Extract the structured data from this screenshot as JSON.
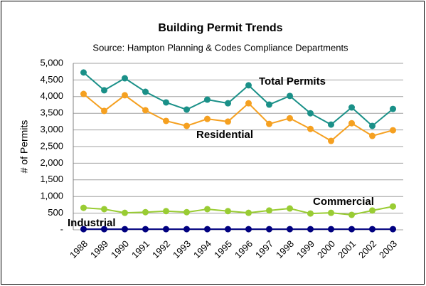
{
  "chart_data": {
    "type": "line",
    "title": "Building Permit Trends",
    "subtitle": "Source: Hampton Planning & Codes Compliance Departments",
    "y_label": "# of Permits",
    "categories": [
      "1988",
      "1989",
      "1990",
      "1991",
      "1992",
      "1993",
      "1994",
      "1995",
      "1996",
      "1997",
      "1998",
      "1999",
      "2000",
      "2001",
      "2002",
      "2003"
    ],
    "series": [
      {
        "name": "Total Permits",
        "color": "#1a9088",
        "values": [
          4725,
          4190,
          4550,
          4145,
          3825,
          3610,
          3910,
          3800,
          4340,
          3760,
          4020,
          3500,
          3160,
          3675,
          3120,
          3630
        ]
      },
      {
        "name": "Residential",
        "color": "#f5a020",
        "values": [
          4080,
          3570,
          4040,
          3590,
          3270,
          3120,
          3330,
          3250,
          3800,
          3180,
          3350,
          3030,
          2670,
          3200,
          2820,
          2990
        ]
      },
      {
        "name": "Commercial",
        "color": "#99cc33",
        "values": [
          660,
          620,
          510,
          530,
          560,
          530,
          620,
          560,
          510,
          580,
          640,
          490,
          510,
          450,
          580,
          700
        ]
      },
      {
        "name": "Industrial",
        "color": "#000080",
        "values": [
          20,
          20,
          20,
          20,
          20,
          20,
          20,
          20,
          20,
          20,
          20,
          20,
          20,
          20,
          20,
          20
        ]
      }
    ],
    "ylim": [
      0,
      5000
    ],
    "yticks": [
      {
        "value": 0,
        "label": "-"
      },
      500,
      {
        "value": 1000,
        "label": "1,000"
      },
      {
        "value": 1500,
        "label": "1,500"
      },
      {
        "value": 2000,
        "label": "2,000"
      },
      {
        "value": 2500,
        "label": "2,500"
      },
      {
        "value": 3000,
        "label": "3,000"
      },
      {
        "value": 3500,
        "label": "3,500"
      },
      {
        "value": 4000,
        "label": "4,000"
      },
      {
        "value": 4500,
        "label": "4,500"
      },
      {
        "value": 5000,
        "label": "5,000"
      }
    ],
    "grid": true
  }
}
